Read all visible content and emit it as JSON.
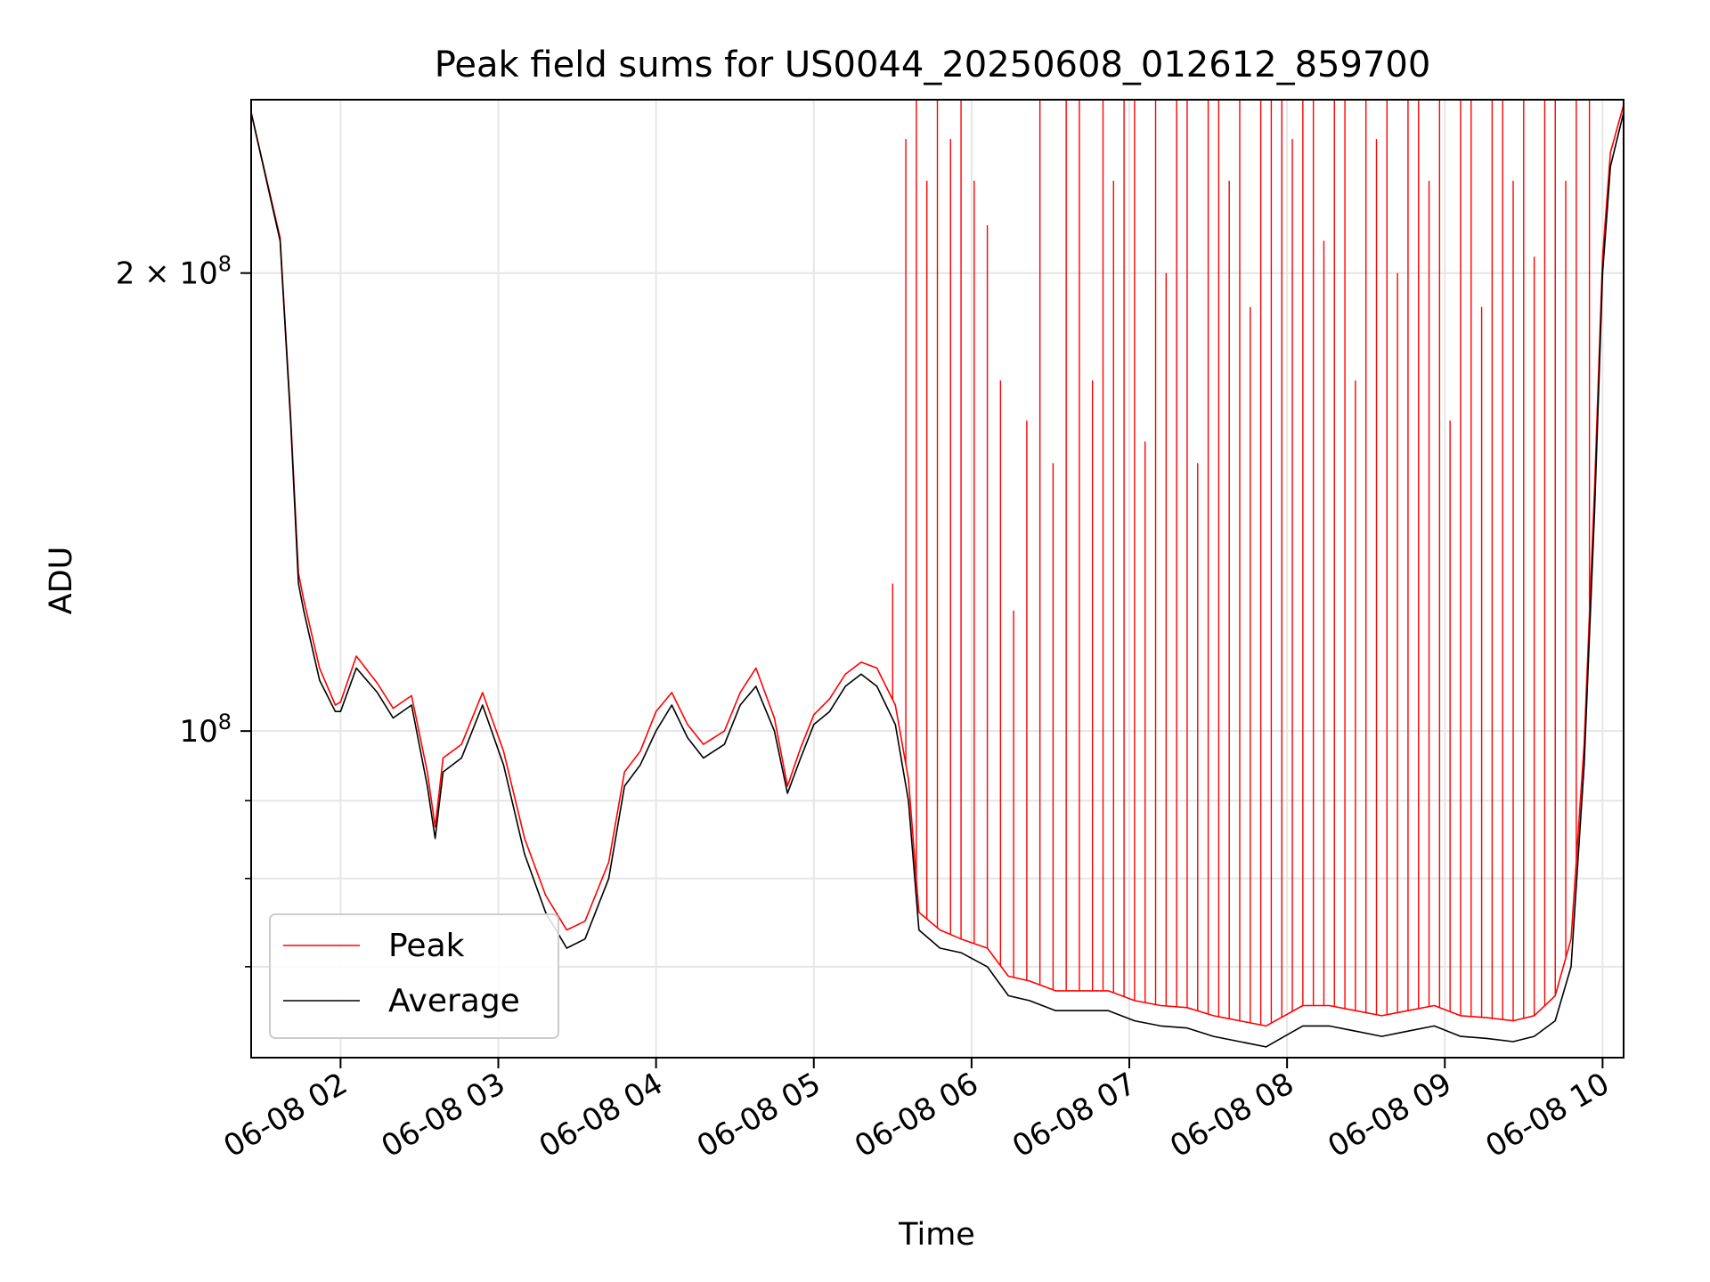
{
  "chart_data": {
    "type": "line",
    "title": "Peak field sums for US0044_20250608_012612_859700",
    "xlabel": "Time",
    "ylabel": "ADU",
    "y_scale": "log",
    "xlim": [
      "2025-06-08 01:26",
      "2025-06-08 10:08"
    ],
    "ylim": [
      61000000,
      260000000
    ],
    "grid": true,
    "legend_position": "lower-left",
    "x_ticks": [
      "2025-06-08 02:00",
      "2025-06-08 03:00",
      "2025-06-08 04:00",
      "2025-06-08 05:00",
      "2025-06-08 06:00",
      "2025-06-08 07:00",
      "2025-06-08 08:00",
      "2025-06-08 09:00",
      "2025-06-08 10:00"
    ],
    "x_tick_labels": [
      "06-08 02",
      "06-08 03",
      "06-08 04",
      "06-08 05",
      "06-08 06",
      "06-08 07",
      "06-08 08",
      "06-08 09",
      "06-08 10"
    ],
    "y_major_ticks": [
      100000000,
      200000000
    ],
    "y_major_tick_labels": [
      {
        "base": "10",
        "exp": "8"
      },
      {
        "base": "2 × 10",
        "exp": "8"
      }
    ],
    "y_minor_ticks": [
      70000000,
      80000000,
      90000000
    ],
    "series": [
      {
        "name": "Average",
        "color": "#000000",
        "x": [
          "2025-06-08 01:26",
          "2025-06-08 01:37",
          "2025-06-08 01:41",
          "2025-06-08 01:44",
          "2025-06-08 01:46",
          "2025-06-08 01:52",
          "2025-06-08 01:58",
          "2025-06-08 02:00",
          "2025-06-08 02:06",
          "2025-06-08 02:14",
          "2025-06-08 02:20",
          "2025-06-08 02:27",
          "2025-06-08 02:33",
          "2025-06-08 02:36",
          "2025-06-08 02:39",
          "2025-06-08 02:46",
          "2025-06-08 02:54",
          "2025-06-08 03:02",
          "2025-06-08 03:10",
          "2025-06-08 03:18",
          "2025-06-08 03:26",
          "2025-06-08 03:33",
          "2025-06-08 03:42",
          "2025-06-08 03:48",
          "2025-06-08 03:54",
          "2025-06-08 04:00",
          "2025-06-08 04:06",
          "2025-06-08 04:12",
          "2025-06-08 04:18",
          "2025-06-08 04:26",
          "2025-06-08 04:32",
          "2025-06-08 04:38",
          "2025-06-08 04:45",
          "2025-06-08 04:50",
          "2025-06-08 04:55",
          "2025-06-08 05:00",
          "2025-06-08 05:06",
          "2025-06-08 05:12",
          "2025-06-08 05:18",
          "2025-06-08 05:24",
          "2025-06-08 05:31",
          "2025-06-08 05:36",
          "2025-06-08 05:40",
          "2025-06-08 05:48",
          "2025-06-08 05:56",
          "2025-06-08 06:06",
          "2025-06-08 06:14",
          "2025-06-08 06:22",
          "2025-06-08 06:32",
          "2025-06-08 06:42",
          "2025-06-08 06:52",
          "2025-06-08 07:02",
          "2025-06-08 07:12",
          "2025-06-08 07:22",
          "2025-06-08 07:32",
          "2025-06-08 07:42",
          "2025-06-08 07:52",
          "2025-06-08 07:59",
          "2025-06-08 08:06",
          "2025-06-08 08:16",
          "2025-06-08 08:26",
          "2025-06-08 08:36",
          "2025-06-08 08:46",
          "2025-06-08 08:56",
          "2025-06-08 09:06",
          "2025-06-08 09:16",
          "2025-06-08 09:26",
          "2025-06-08 09:34",
          "2025-06-08 09:42",
          "2025-06-08 09:48",
          "2025-06-08 09:53",
          "2025-06-08 09:57",
          "2025-06-08 10:00",
          "2025-06-08 10:03",
          "2025-06-08 10:08"
        ],
        "values": [
          255000000,
          210000000,
          160000000,
          125000000,
          120000000,
          108000000,
          103000000,
          103000000,
          110000000,
          106000000,
          102000000,
          104000000,
          92000000,
          85000000,
          94000000,
          96000000,
          104000000,
          95000000,
          83000000,
          76000000,
          72000000,
          73000000,
          80000000,
          92000000,
          95000000,
          100000000,
          104000000,
          99000000,
          96000000,
          98000000,
          104000000,
          107000000,
          100000000,
          91000000,
          96000000,
          101000000,
          103000000,
          107000000,
          109000000,
          107000000,
          101000000,
          90000000,
          74000000,
          72000000,
          71500000,
          70000000,
          67000000,
          66500000,
          65500000,
          65500000,
          65500000,
          64500000,
          64000000,
          63800000,
          63000000,
          62500000,
          62000000,
          63000000,
          64000000,
          64000000,
          63500000,
          63000000,
          63500000,
          64000000,
          63000000,
          62800000,
          62500000,
          63000000,
          64500000,
          70000000,
          95000000,
          140000000,
          200000000,
          235000000,
          255000000
        ]
      },
      {
        "name": "Peak",
        "color": "#ff0000",
        "x": [
          "2025-06-08 01:26",
          "2025-06-08 01:37",
          "2025-06-08 01:41",
          "2025-06-08 01:44",
          "2025-06-08 01:46",
          "2025-06-08 01:52",
          "2025-06-08 01:58",
          "2025-06-08 02:00",
          "2025-06-08 02:06",
          "2025-06-08 02:14",
          "2025-06-08 02:20",
          "2025-06-08 02:27",
          "2025-06-08 02:33",
          "2025-06-08 02:36",
          "2025-06-08 02:39",
          "2025-06-08 02:46",
          "2025-06-08 02:54",
          "2025-06-08 03:02",
          "2025-06-08 03:10",
          "2025-06-08 03:18",
          "2025-06-08 03:26",
          "2025-06-08 03:33",
          "2025-06-08 03:42",
          "2025-06-08 03:48",
          "2025-06-08 03:54",
          "2025-06-08 04:00",
          "2025-06-08 04:06",
          "2025-06-08 04:12",
          "2025-06-08 04:18",
          "2025-06-08 04:26",
          "2025-06-08 04:32",
          "2025-06-08 04:38",
          "2025-06-08 04:45",
          "2025-06-08 04:50",
          "2025-06-08 04:55",
          "2025-06-08 05:00",
          "2025-06-08 05:06",
          "2025-06-08 05:12",
          "2025-06-08 05:18",
          "2025-06-08 05:24",
          "2025-06-08 05:31",
          "2025-06-08 05:36",
          "2025-06-08 05:40",
          "2025-06-08 05:48",
          "2025-06-08 05:56",
          "2025-06-08 06:06",
          "2025-06-08 06:14",
          "2025-06-08 06:22",
          "2025-06-08 06:32",
          "2025-06-08 06:42",
          "2025-06-08 06:52",
          "2025-06-08 07:02",
          "2025-06-08 07:12",
          "2025-06-08 07:22",
          "2025-06-08 07:32",
          "2025-06-08 07:42",
          "2025-06-08 07:52",
          "2025-06-08 07:59",
          "2025-06-08 08:06",
          "2025-06-08 08:16",
          "2025-06-08 08:26",
          "2025-06-08 08:36",
          "2025-06-08 08:46",
          "2025-06-08 08:56",
          "2025-06-08 09:06",
          "2025-06-08 09:16",
          "2025-06-08 09:26",
          "2025-06-08 09:34",
          "2025-06-08 09:42",
          "2025-06-08 09:48",
          "2025-06-08 09:53",
          "2025-06-08 09:57",
          "2025-06-08 10:00",
          "2025-06-08 10:03",
          "2025-06-08 10:08"
        ],
        "values": [
          255000000,
          211000000,
          161000000,
          127000000,
          122000000,
          110000000,
          104000000,
          104500000,
          112000000,
          107500000,
          103500000,
          105500000,
          94000000,
          86500000,
          96000000,
          98000000,
          106000000,
          97000000,
          85000000,
          78000000,
          74000000,
          75000000,
          82000000,
          94000000,
          97000000,
          103000000,
          106000000,
          101000000,
          98000000,
          100000000,
          106000000,
          110000000,
          102000000,
          92000000,
          97500000,
          102500000,
          105000000,
          109000000,
          111000000,
          110000000,
          104000000,
          93000000,
          76000000,
          74000000,
          73000000,
          72000000,
          69000000,
          68500000,
          67500000,
          67500000,
          67500000,
          66500000,
          66000000,
          65800000,
          65000000,
          64500000,
          64000000,
          65000000,
          66000000,
          66000000,
          65500000,
          65000000,
          65500000,
          66000000,
          65000000,
          64800000,
          64500000,
          65000000,
          67000000,
          73000000,
          98000000,
          145000000,
          205000000,
          240000000,
          258000000
        ],
        "spikes_note_free": true,
        "spike_times": [
          "2025-06-08 05:30",
          "2025-06-08 05:35",
          "2025-06-08 05:39",
          "2025-06-08 05:43",
          "2025-06-08 05:47",
          "2025-06-08 05:52",
          "2025-06-08 05:56",
          "2025-06-08 06:01",
          "2025-06-08 06:06",
          "2025-06-08 06:11",
          "2025-06-08 06:16",
          "2025-06-08 06:21",
          "2025-06-08 06:26",
          "2025-06-08 06:31",
          "2025-06-08 06:36",
          "2025-06-08 06:41",
          "2025-06-08 06:46",
          "2025-06-08 06:50",
          "2025-06-08 06:54",
          "2025-06-08 06:58",
          "2025-06-08 07:02",
          "2025-06-08 07:06",
          "2025-06-08 07:10",
          "2025-06-08 07:14",
          "2025-06-08 07:18",
          "2025-06-08 07:22",
          "2025-06-08 07:26",
          "2025-06-08 07:30",
          "2025-06-08 07:34",
          "2025-06-08 07:38",
          "2025-06-08 07:42",
          "2025-06-08 07:46",
          "2025-06-08 07:50",
          "2025-06-08 07:54",
          "2025-06-08 07:58",
          "2025-06-08 08:02",
          "2025-06-08 08:06",
          "2025-06-08 08:10",
          "2025-06-08 08:14",
          "2025-06-08 08:18",
          "2025-06-08 08:22",
          "2025-06-08 08:26",
          "2025-06-08 08:30",
          "2025-06-08 08:34",
          "2025-06-08 08:38",
          "2025-06-08 08:42",
          "2025-06-08 08:46",
          "2025-06-08 08:50",
          "2025-06-08 08:54",
          "2025-06-08 08:58",
          "2025-06-08 09:02",
          "2025-06-08 09:06",
          "2025-06-08 09:10",
          "2025-06-08 09:14",
          "2025-06-08 09:18",
          "2025-06-08 09:22",
          "2025-06-08 09:26",
          "2025-06-08 09:30",
          "2025-06-08 09:34",
          "2025-06-08 09:38",
          "2025-06-08 09:42",
          "2025-06-08 09:46",
          "2025-06-08 09:50",
          "2025-06-08 09:55"
        ],
        "spike_values": [
          125000000,
          245000000,
          260000000,
          230000000,
          260000000,
          245000000,
          260000000,
          230000000,
          215000000,
          170000000,
          120000000,
          160000000,
          260000000,
          150000000,
          260000000,
          260000000,
          170000000,
          260000000,
          230000000,
          260000000,
          260000000,
          155000000,
          260000000,
          200000000,
          260000000,
          260000000,
          150000000,
          260000000,
          260000000,
          230000000,
          260000000,
          190000000,
          260000000,
          260000000,
          260000000,
          245000000,
          260000000,
          260000000,
          210000000,
          260000000,
          260000000,
          170000000,
          260000000,
          245000000,
          260000000,
          200000000,
          260000000,
          260000000,
          230000000,
          260000000,
          160000000,
          260000000,
          260000000,
          190000000,
          260000000,
          260000000,
          230000000,
          260000000,
          205000000,
          260000000,
          260000000,
          230000000,
          260000000,
          260000000
        ]
      }
    ]
  }
}
